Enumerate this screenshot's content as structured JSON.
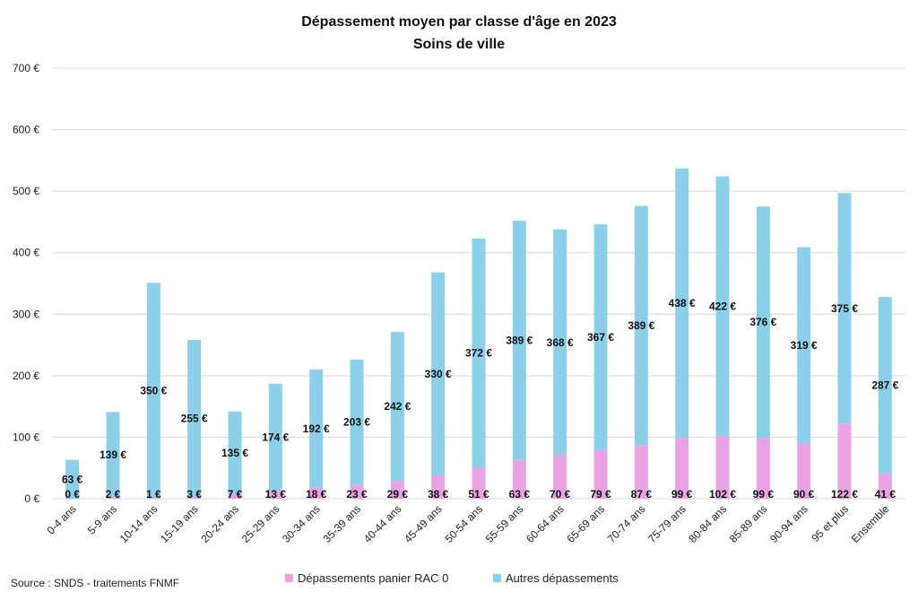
{
  "chart_data": {
    "type": "bar",
    "stacked": true,
    "title": "Dépassement moyen par classe d'âge en 2023",
    "subtitle": "Soins de ville",
    "xlabel": "",
    "ylabel": "",
    "ylim": [
      0,
      700
    ],
    "yticks": [
      0,
      100,
      200,
      300,
      400,
      500,
      600,
      700
    ],
    "ytick_labels": [
      "0 €",
      "100 €",
      "200 €",
      "300 €",
      "400 €",
      "500 €",
      "600 €",
      "700 €"
    ],
    "value_suffix": " €",
    "grid": true,
    "legend_position": "bottom",
    "categories": [
      "0-4 ans",
      "5-9 ans",
      "10-14 ans",
      "15-19 ans",
      "20-24 ans",
      "25-29 ans",
      "30-34 ans",
      "35-39 ans",
      "40-44 ans",
      "45-49 ans",
      "50-54 ans",
      "55-59 ans",
      "60-64 ans",
      "65-69 ans",
      "70-74 ans",
      "75-79 ans",
      "80-84 ans",
      "85-89 ans",
      "90-94 ans",
      "95 et plus",
      "Ensemble"
    ],
    "series": [
      {
        "name": "Dépassements panier RAC 0",
        "color": "#e9a2e4",
        "values": [
          0,
          2,
          1,
          3,
          7,
          13,
          18,
          23,
          29,
          38,
          51,
          63,
          70,
          79,
          87,
          99,
          102,
          99,
          90,
          122,
          41
        ]
      },
      {
        "name": "Autres dépassements",
        "color": "#8ccfea",
        "values": [
          63,
          139,
          350,
          255,
          135,
          174,
          192,
          203,
          242,
          330,
          372,
          389,
          368,
          367,
          389,
          438,
          422,
          376,
          319,
          375,
          287
        ]
      }
    ]
  },
  "source": "Source : SNDS - traitements FNMF"
}
